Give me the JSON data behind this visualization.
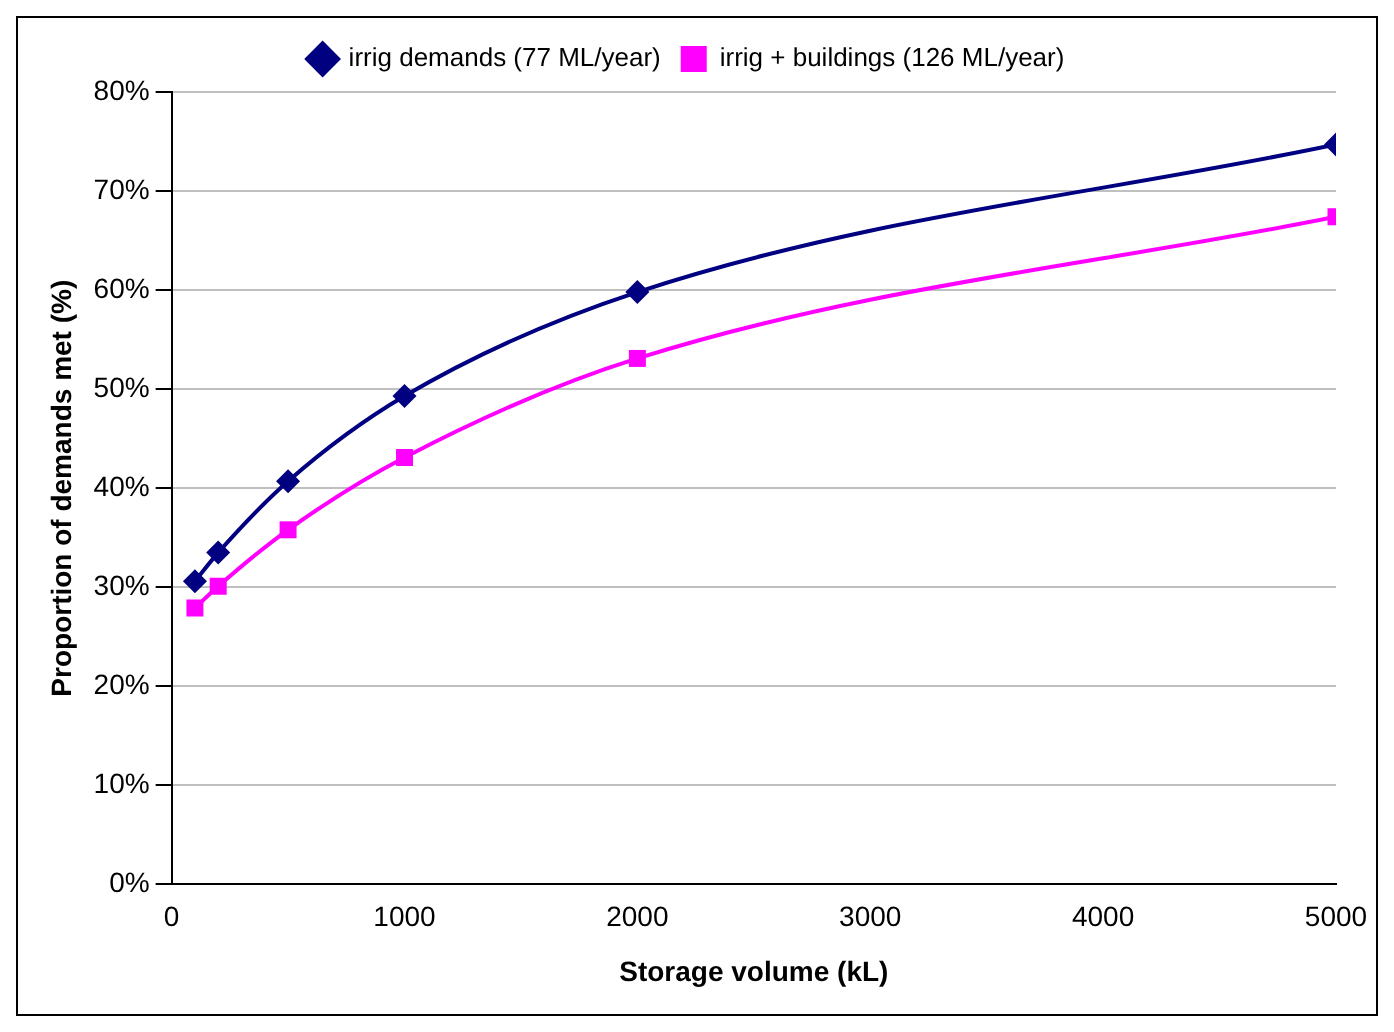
{
  "chart_data": {
    "type": "line",
    "xlabel": "Storage volume (kL)",
    "ylabel": "Proportion of demands met (%)",
    "x": [
      100,
      200,
      500,
      1000,
      2000,
      5000
    ],
    "series": [
      {
        "name": "irrig demands (77 ML/year)",
        "color": "#000080",
        "marker": "diamond",
        "values": [
          30.6,
          33.5,
          40.7,
          49.3,
          59.8,
          74.7
        ]
      },
      {
        "name": "irrig + buildings (126 ML/year)",
        "color": "#ff00ff",
        "marker": "square",
        "values": [
          27.9,
          30.1,
          35.8,
          43.1,
          53.1,
          67.4
        ]
      }
    ],
    "xlim": [
      0,
      5000
    ],
    "xticks": [
      0,
      1000,
      2000,
      3000,
      4000,
      5000
    ],
    "ylim": [
      0,
      80
    ],
    "yticks": [
      {
        "value": 0,
        "label": "0%"
      },
      {
        "value": 10,
        "label": "10%"
      },
      {
        "value": 20,
        "label": "20%"
      },
      {
        "value": 30,
        "label": "30%"
      },
      {
        "value": 40,
        "label": "40%"
      },
      {
        "value": 50,
        "label": "50%"
      },
      {
        "value": 60,
        "label": "60%"
      },
      {
        "value": 70,
        "label": "70%"
      },
      {
        "value": 80,
        "label": "80%"
      }
    ],
    "grid": "y",
    "legend": "top",
    "line_style": "solid"
  }
}
